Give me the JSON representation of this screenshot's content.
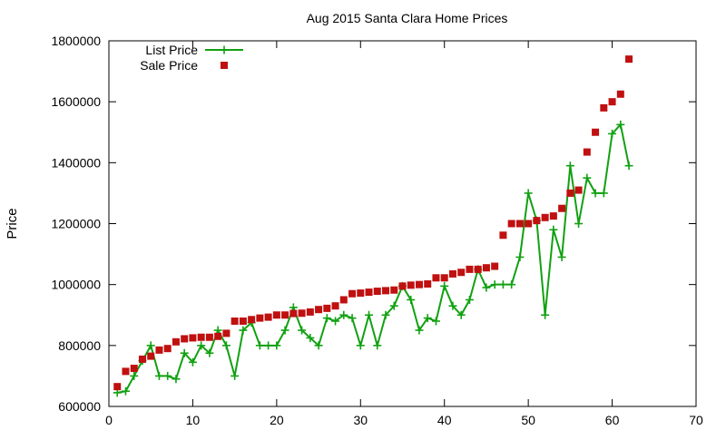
{
  "chart_data": {
    "type": "line",
    "title": "Aug 2015 Santa Clara Home Prices",
    "xlabel": "",
    "ylabel": "Price",
    "xlim": [
      0,
      70
    ],
    "ylim": [
      600000,
      1800000
    ],
    "x_ticks": [
      0,
      10,
      20,
      30,
      40,
      50,
      60,
      70
    ],
    "y_ticks": [
      600000,
      800000,
      1000000,
      1200000,
      1400000,
      1600000,
      1800000
    ],
    "grid": false,
    "legend_position": "top-left",
    "series": [
      {
        "name": "List Price",
        "style": "linespoints",
        "marker": "plus",
        "color": "#11a111",
        "x": [
          1,
          2,
          3,
          4,
          5,
          6,
          7,
          8,
          9,
          10,
          11,
          12,
          13,
          14,
          15,
          16,
          17,
          18,
          19,
          20,
          21,
          22,
          23,
          24,
          25,
          26,
          27,
          28,
          29,
          30,
          31,
          32,
          33,
          34,
          35,
          36,
          37,
          38,
          39,
          40,
          41,
          42,
          43,
          44,
          45,
          46,
          47,
          48,
          49,
          50,
          51,
          52,
          53,
          54,
          55,
          56,
          57,
          58,
          59,
          60,
          61,
          62
        ],
        "y": [
          645000,
          650000,
          700000,
          750000,
          800000,
          700000,
          700000,
          690000,
          775000,
          745000,
          800000,
          775000,
          850000,
          800000,
          700000,
          850000,
          875000,
          800000,
          800000,
          800000,
          850000,
          925000,
          850000,
          825000,
          800000,
          890000,
          880000,
          900000,
          890000,
          800000,
          900000,
          800000,
          900000,
          930000,
          995000,
          950000,
          850000,
          890000,
          880000,
          995000,
          930000,
          900000,
          950000,
          1050000,
          990000,
          1000000,
          1000000,
          1000000,
          1090000,
          1300000,
          1210000,
          900000,
          1180000,
          1090000,
          1390000,
          1200000,
          1350000,
          1300000,
          1300000,
          1495000,
          1525000,
          1390000
        ]
      },
      {
        "name": "Sale Price",
        "style": "points",
        "marker": "square",
        "color": "#c01010",
        "x": [
          1,
          2,
          3,
          4,
          5,
          6,
          7,
          8,
          9,
          10,
          11,
          12,
          13,
          14,
          15,
          16,
          17,
          18,
          19,
          20,
          21,
          22,
          23,
          24,
          25,
          26,
          27,
          28,
          29,
          30,
          31,
          32,
          33,
          34,
          35,
          36,
          37,
          38,
          39,
          40,
          41,
          42,
          43,
          44,
          45,
          46,
          47,
          48,
          49,
          50,
          51,
          52,
          53,
          54,
          55,
          56,
          57,
          58,
          59,
          60,
          61,
          62
        ],
        "y": [
          665000,
          715000,
          725000,
          755000,
          765000,
          785000,
          790000,
          812000,
          822000,
          825000,
          827000,
          827000,
          830000,
          840000,
          880000,
          880000,
          885000,
          890000,
          893000,
          900000,
          900000,
          905000,
          906000,
          910000,
          918000,
          922000,
          930000,
          950000,
          970000,
          972000,
          975000,
          978000,
          980000,
          982000,
          995000,
          998000,
          1000000,
          1002000,
          1022000,
          1022000,
          1035000,
          1040000,
          1050000,
          1050000,
          1055000,
          1060000,
          1162000,
          1200000,
          1200000,
          1200000,
          1210000,
          1220000,
          1225000,
          1250000,
          1300000,
          1310000,
          1435000,
          1500000,
          1580000,
          1600000,
          1625000,
          1740000
        ]
      }
    ]
  }
}
